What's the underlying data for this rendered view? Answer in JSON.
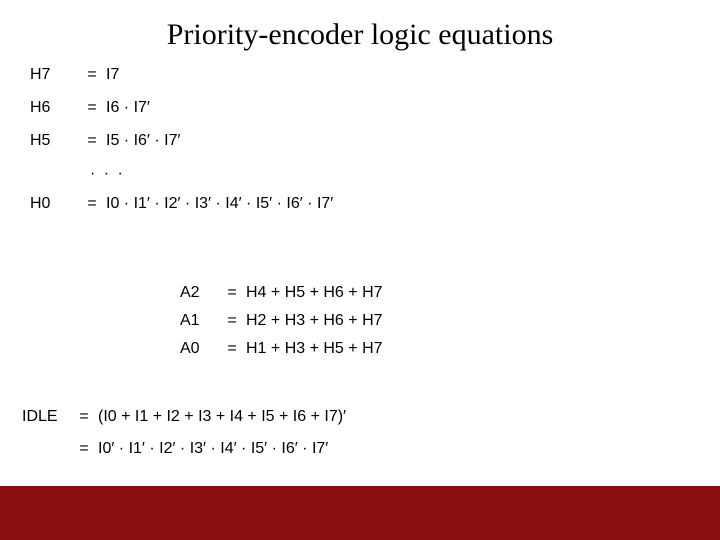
{
  "title": "Priority-encoder logic equations",
  "colors": {
    "background": "#ffffff",
    "text": "#000000",
    "footer_bar": "#8a1010"
  },
  "typography": {
    "title_font": "Times New Roman",
    "title_size_pt": 22,
    "body_font": "Arial",
    "body_size_pt": 12
  },
  "equations_h": {
    "rows": [
      {
        "lhs": "H7",
        "rhs": "I7"
      },
      {
        "lhs": "H6",
        "rhs": "I6 · I7′"
      },
      {
        "lhs": "H5",
        "rhs": "I5 · I6′ · I7′"
      }
    ],
    "ellipsis": "· · ·",
    "h0": {
      "lhs": "H0",
      "rhs": "I0 · I1′ · I2′ · I3′ · I4′ · I5′ · I6′ · I7′"
    }
  },
  "equations_a": {
    "rows": [
      {
        "lhs": "A2",
        "rhs": "H4 + H5 + H6 + H7"
      },
      {
        "lhs": "A1",
        "rhs": "H2 + H3 + H6 + H7"
      },
      {
        "lhs": "A0",
        "rhs": "H1 + H3 + H5 + H7"
      }
    ]
  },
  "equations_idle": {
    "lhs": "IDLE",
    "rhs1": "(I0 + I1 + I2 + I3 + I4 + I5 + I6 + I7)′",
    "rhs2": "I0′ · I1′ · I2′ · I3′ · I4′ · I5′ · I6′ · I7′"
  },
  "eq_symbol": "="
}
